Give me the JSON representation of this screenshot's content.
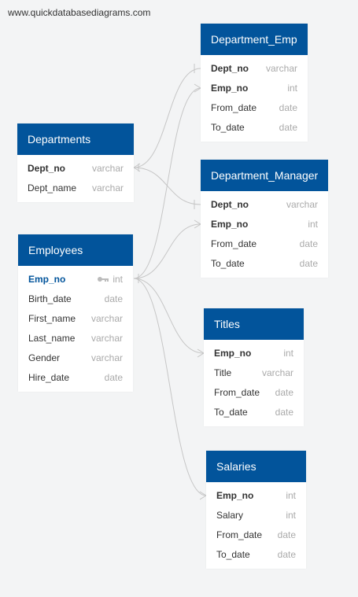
{
  "watermark": "www.quickdatabasediagrams.com",
  "colors": {
    "header": "#02549b",
    "link": "#c6c6c6",
    "selected_field": "#02549b"
  },
  "tables": {
    "department_emp": {
      "name": "Department_Emp",
      "fields": [
        {
          "name": "Dept_no",
          "type": "varchar"
        },
        {
          "name": "Emp_no",
          "type": "int"
        },
        {
          "name": "From_date",
          "type": "date"
        },
        {
          "name": "To_date",
          "type": "date"
        }
      ]
    },
    "departments": {
      "name": "Departments",
      "fields": [
        {
          "name": "Dept_no",
          "type": "varchar"
        },
        {
          "name": "Dept_name",
          "type": "varchar"
        }
      ]
    },
    "department_manager": {
      "name": "Department_Manager",
      "fields": [
        {
          "name": "Dept_no",
          "type": "varchar"
        },
        {
          "name": "Emp_no",
          "type": "int"
        },
        {
          "name": "From_date",
          "type": "date"
        },
        {
          "name": "To_date",
          "type": "date"
        }
      ]
    },
    "employees": {
      "name": "Employees",
      "fields": [
        {
          "name": "Emp_no",
          "type": "int",
          "icon": "key-icon"
        },
        {
          "name": "Birth_date",
          "type": "date"
        },
        {
          "name": "First_name",
          "type": "varchar"
        },
        {
          "name": "Last_name",
          "type": "varchar"
        },
        {
          "name": "Gender",
          "type": "varchar"
        },
        {
          "name": "Hire_date",
          "type": "date"
        }
      ]
    },
    "titles": {
      "name": "Titles",
      "fields": [
        {
          "name": "Emp_no",
          "type": "int"
        },
        {
          "name": "Title",
          "type": "varchar"
        },
        {
          "name": "From_date",
          "type": "date"
        },
        {
          "name": "To_date",
          "type": "date"
        }
      ]
    },
    "salaries": {
      "name": "Salaries",
      "fields": [
        {
          "name": "Emp_no",
          "type": "int"
        },
        {
          "name": "Salary",
          "type": "int"
        },
        {
          "name": "From_date",
          "type": "date"
        },
        {
          "name": "To_date",
          "type": "date"
        }
      ]
    }
  },
  "relationships": [
    {
      "from": "departments.Dept_no",
      "to": "department_emp.Dept_no"
    },
    {
      "from": "departments.Dept_no",
      "to": "department_manager.Dept_no"
    },
    {
      "from": "employees.Emp_no",
      "to": "department_emp.Emp_no"
    },
    {
      "from": "employees.Emp_no",
      "to": "department_manager.Emp_no"
    },
    {
      "from": "employees.Emp_no",
      "to": "titles.Emp_no"
    },
    {
      "from": "employees.Emp_no",
      "to": "salaries.Emp_no"
    }
  ]
}
